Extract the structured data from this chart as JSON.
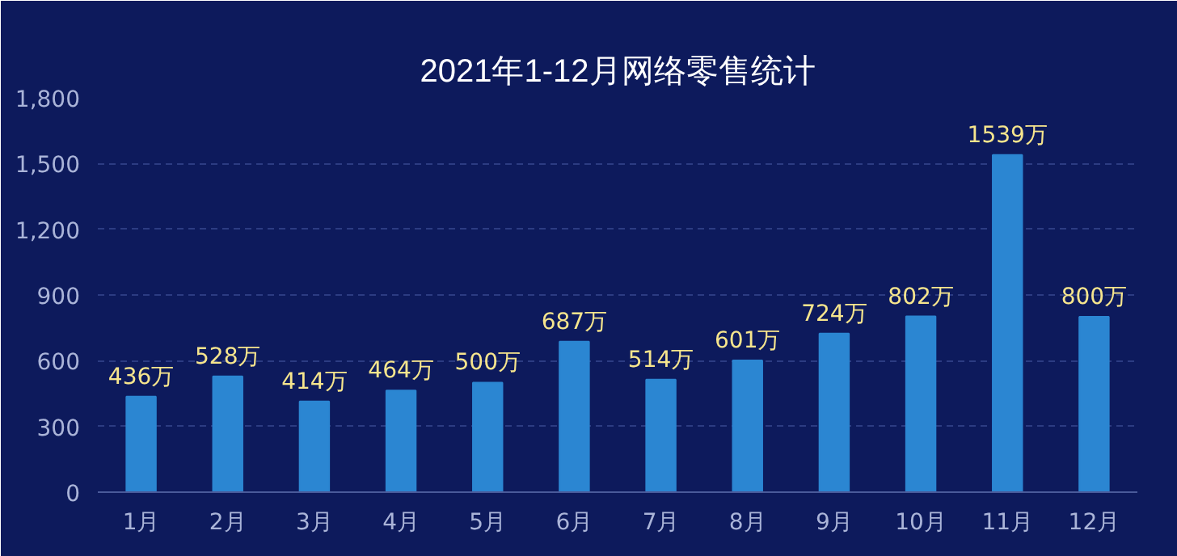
{
  "chart_data": {
    "type": "bar",
    "title": "2021年1-12月网络零售统计",
    "categories": [
      "1月",
      "2月",
      "3月",
      "4月",
      "5月",
      "6月",
      "7月",
      "8月",
      "9月",
      "10月",
      "11月",
      "12月"
    ],
    "values": [
      436,
      528,
      414,
      464,
      500,
      687,
      514,
      601,
      724,
      802,
      1539,
      800
    ],
    "value_labels": [
      "436万",
      "528万",
      "414万",
      "464万",
      "500万",
      "687万",
      "514万",
      "601万",
      "724万",
      "802万",
      "1539万",
      "800万"
    ],
    "color": "#2b86d2",
    "ylim": [
      0,
      1800
    ],
    "yticks": [
      0,
      300,
      600,
      900,
      {
        "value": 1200,
        "label": "1,200"
      },
      {
        "value": 1500,
        "label": "1,500"
      },
      {
        "value": 1800,
        "label": "1,800"
      }
    ],
    "grid": "y"
  }
}
